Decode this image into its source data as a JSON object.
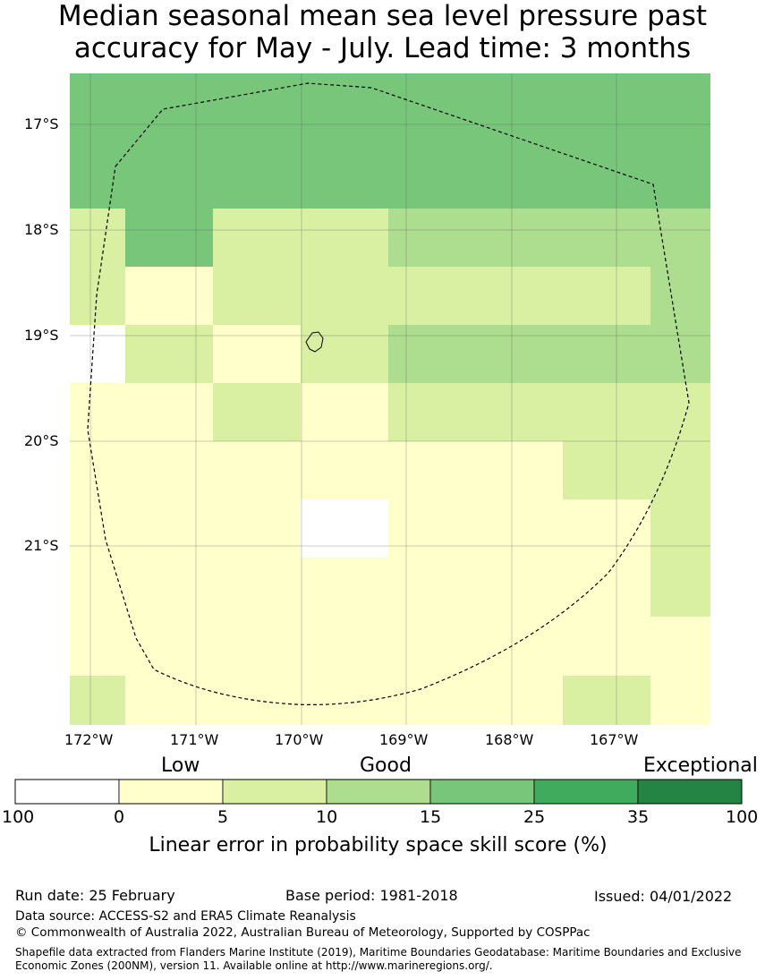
{
  "title": {
    "line1": "Median seasonal mean sea level pressure past",
    "line2": "accuracy for May - July. Lead time: 3 months"
  },
  "map": {
    "lat_labels": [
      "17°S",
      "18°S",
      "19°S",
      "20°S",
      "21°S"
    ],
    "lon_labels": [
      "172°W",
      "171°W",
      "170°W",
      "169°W",
      "168°W",
      "167°W"
    ]
  },
  "legend": {
    "categories": [
      "Low",
      "Good",
      "Exceptional"
    ],
    "colors": [
      "#ffffff",
      "#ffffcc",
      "#d9f0a3",
      "#addd8e",
      "#78c679",
      "#41ab5d",
      "#238443"
    ],
    "ticks": [
      "100",
      "0",
      "5",
      "10",
      "15",
      "25",
      "35",
      "100"
    ],
    "label": "Linear error in probability space skill score (%)"
  },
  "footer": {
    "run_date": "Run date: 25 February",
    "base_period": "Base period: 1981-2018",
    "issued": "Issued: 04/01/2022",
    "data_source": "Data source: ACCESS-S2 and ERA5 Climate Reanalysis",
    "copyright": "© Commonwealth of Australia 2022, Australian Bureau of Meteorology, Supported by COSPPac",
    "shapefile": "Shapefile data extracted from Flanders Marine Institute (2019), Maritime Boundaries Geodatabase: Maritime Boundaries and Exclusive Economic Zones (200NM), version 11. Available online at http://www.marineregions.org/."
  }
}
